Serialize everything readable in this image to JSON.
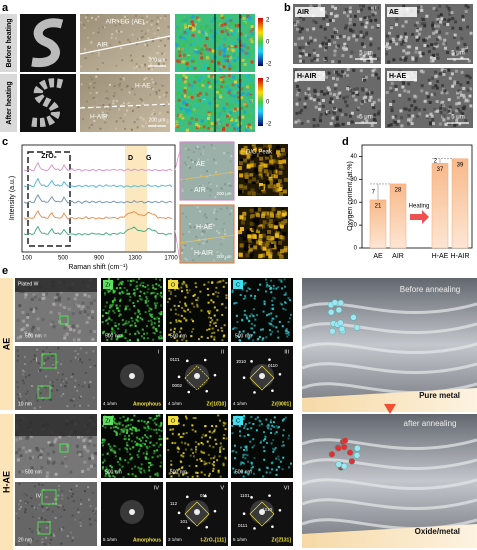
{
  "panels": {
    "a": {
      "label": "a",
      "row_labels": [
        "Before heating",
        "After heating"
      ],
      "sample_labels": [
        "AIR+EG (AE)",
        "AIR",
        "H-AE",
        "H-AIR"
      ],
      "scale_bars": [
        "200 μm",
        "200 μm"
      ],
      "colorbars": [
        [
          "2",
          "0",
          "-2"
        ],
        [
          "2",
          "0",
          "-2"
        ]
      ]
    },
    "b": {
      "label": "b",
      "images": [
        "AIR",
        "AE",
        "H-AIR",
        "H-AE"
      ],
      "scale_bars": [
        "5 μm",
        "5 μm",
        "5 μm",
        "5 μm"
      ]
    },
    "c": {
      "label": "c",
      "region_label": "ZrO₂",
      "peaks": [
        "D",
        "G"
      ],
      "y_label": "Intensity (a.u.)",
      "x_label": "Raman shift (cm⁻¹)",
      "x_ticks": [
        "100",
        "500",
        "900",
        "1300",
        "1700"
      ],
      "image_labels": [
        "AE",
        "AIR",
        "H-AE",
        "H-AIR"
      ],
      "scale_bars": [
        "200 μm",
        "200 μm"
      ],
      "map_title": "D/G Peak"
    },
    "d": {
      "label": "d",
      "y_label": "Oxygen content (at.%)",
      "categories": [
        "AE",
        "AIR",
        "H-AE",
        "H-AIR"
      ],
      "values": [
        21,
        28,
        37,
        39
      ],
      "increments": [
        7,
        2
      ],
      "arrow_label": "Heating",
      "ylim": [
        0,
        45
      ],
      "yticks": [
        0,
        10,
        20,
        30,
        40
      ]
    },
    "e": {
      "label": "e",
      "row_labels": [
        "AE",
        "H-AE"
      ],
      "rows": [
        {
          "overview_label": "Plated W",
          "overview_scale": "500 nm",
          "maps": [
            "Zr",
            "O",
            "C"
          ],
          "map_scales": [
            "500 nm",
            "500 nm",
            "500 nm"
          ],
          "hrtem_scale": "10 nm",
          "roman": [
            "I",
            "I",
            "II",
            "III"
          ],
          "fft_scales": [
            "4 1/nm",
            "4 1/nm",
            "4 1/nm"
          ],
          "fft_titles": [
            "Amorphous",
            "Zr[10̄10]",
            "Zr[0001]"
          ],
          "planes": [
            "011̄1",
            "0002",
            "1̄010",
            "0110"
          ]
        },
        {
          "overview_label": "",
          "overview_scale": "500 nm",
          "maps": [
            "Zr",
            "O",
            "C"
          ],
          "map_scales": [
            "500 nm",
            "500 nm",
            "500 nm"
          ],
          "hrtem_scale": "20 nm",
          "roman": [
            "IV",
            "IV",
            "V",
            "VI"
          ],
          "fft_scales": [
            "5 1/nm",
            "3 1/nm",
            "5 1/nm"
          ],
          "fft_titles": [
            "Amorphous",
            "t-ZrO₂[111]",
            "Zr[2̄131]"
          ],
          "planes": [
            "112",
            "011",
            "101",
            "1101",
            "1210",
            "0111"
          ]
        }
      ],
      "model_labels": [
        "Before annealing",
        "Pure metal",
        "after annealing",
        "Oxide/metal"
      ]
    }
  }
}
